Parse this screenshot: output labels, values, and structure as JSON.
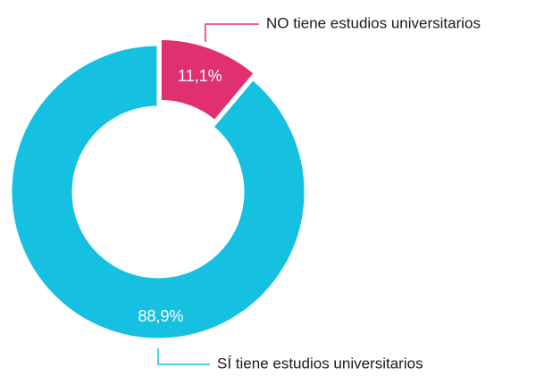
{
  "chart_data": {
    "type": "donut",
    "categories": [
      "NO tiene estudios universitarios",
      "SÍ tiene estudios universitarios"
    ],
    "values": [
      11.1,
      88.9
    ],
    "value_labels": [
      "11,1%",
      "88,9%"
    ],
    "colors": [
      "#e0306f",
      "#16c0e0"
    ]
  }
}
